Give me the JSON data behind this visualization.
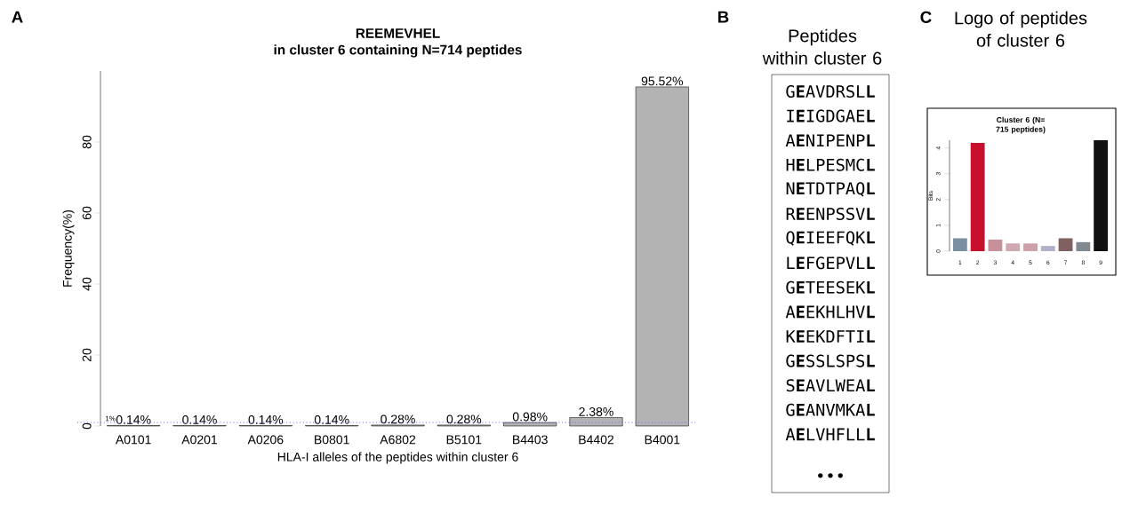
{
  "chart_data": [
    {
      "type": "bar",
      "title": "REEMEVHEL",
      "subtitle": "in cluster 6 containing N=714 peptides",
      "annotations": [
        "A"
      ],
      "xlabel": "HLA-I alleles of the peptides within cluster 6",
      "ylabel": "Frequency(%)",
      "categories": [
        "A0101",
        "A0201",
        "A0206",
        "B0801",
        "A6802",
        "B5101",
        "B4403",
        "B4402",
        "B4001"
      ],
      "values": [
        0.14,
        0.14,
        0.14,
        0.14,
        0.28,
        0.28,
        0.98,
        2.38,
        95.52
      ],
      "value_labels": [
        "0.14%",
        "0.14%",
        "0.14%",
        "0.14%",
        "0.28%",
        "0.28%",
        "0.98%",
        "2.38%",
        "95.52%"
      ],
      "color": "#b3b3b3",
      "ylim": [
        0,
        100
      ],
      "yticks": [
        0,
        20,
        40,
        60,
        80
      ],
      "ref_lines": [
        {
          "axis": "y",
          "value": 1,
          "label": "1%",
          "color": "#6b6bff",
          "line_style": "dotted"
        }
      ]
    },
    {
      "type": "other",
      "title": "Peptides within cluster 6",
      "annotations": [
        "B",
        "G**E**AVDRSL**L**",
        "I**E**IGDGAE**L**",
        "A**E**NIPENP**L**",
        "H**E**LPESMC**L**",
        "N**E**TDTPAQ**L**",
        "R**E**ENPSSV**L**",
        "Q**E**IEEFQK**L**",
        "L**E**FGEPVL**L**",
        "G**E**TEESEK**L**",
        "A**E**EKHLHV**L**",
        "K**E**EKDFTI**L**",
        "G**E**SSLSPS**L**",
        "S**E**AVLWEA**L**",
        "G**E**ANVMKA**L**",
        "A**E**LVHFLL**L**",
        "•••"
      ]
    },
    {
      "type": "bar",
      "title": "Logo of peptides of cluster 6",
      "subtitle": "Cluster 6 (N= 715 peptides)",
      "annotations": [
        "C"
      ],
      "ylabel": "Bits",
      "categories": [
        "1",
        "2",
        "3",
        "4",
        "5",
        "6",
        "7",
        "8",
        "9"
      ],
      "values": [
        0.5,
        4.2,
        0.45,
        0.3,
        0.3,
        0.2,
        0.5,
        0.35,
        4.3
      ],
      "colors": [
        "#7a8fa0",
        "#c8102e",
        "#c89098",
        "#d0a8b0",
        "#d0a0a8",
        "#b0b0c8",
        "#806060",
        "#808890",
        "#111111"
      ],
      "ylim": [
        0,
        4.3
      ],
      "yticks": [
        0,
        1,
        2,
        3,
        4
      ]
    }
  ]
}
